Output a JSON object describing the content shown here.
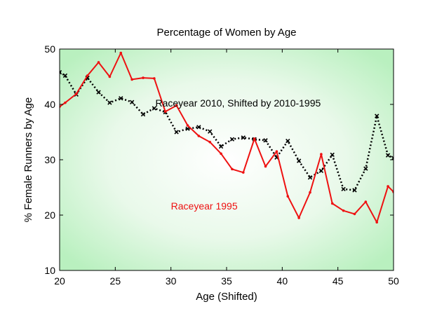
{
  "chart_data": {
    "type": "line",
    "title": "Percentage of Women by Age",
    "xlabel": "Age (Shifted)",
    "ylabel": "% Female Runners by Age",
    "xlim": [
      20,
      50
    ],
    "ylim": [
      10,
      50
    ],
    "xticks": [
      20,
      25,
      30,
      35,
      40,
      45,
      50
    ],
    "yticks": [
      10,
      20,
      30,
      40,
      50
    ],
    "xtick_labels": [
      "20",
      "25",
      "30",
      "35",
      "40",
      "45",
      "50"
    ],
    "ytick_labels": [
      "10",
      "20",
      "30",
      "40",
      "50"
    ],
    "grid": false,
    "background": "radial gradient white center to light green edges",
    "series": [
      {
        "name": "Raceyear 2010, Shifted by 2010-1995",
        "color": "#000000",
        "linestyle": "dotted",
        "marker": "x",
        "x": [
          20.0,
          20.5,
          21.5,
          22.5,
          23.5,
          24.5,
          25.5,
          26.5,
          27.5,
          28.5,
          29.5,
          30.5,
          31.5,
          32.5,
          33.5,
          34.5,
          35.5,
          36.5,
          37.5,
          38.5,
          39.5,
          40.5,
          41.5,
          42.5,
          43.5,
          44.5,
          45.5,
          46.5,
          47.5,
          48.5,
          49.5,
          50.0
        ],
        "y": [
          45.8,
          45.2,
          41.8,
          44.8,
          42.2,
          40.3,
          41.1,
          40.4,
          38.2,
          39.3,
          38.6,
          35.0,
          35.6,
          35.9,
          35.1,
          32.4,
          33.7,
          34.0,
          33.7,
          33.5,
          30.4,
          33.4,
          29.8,
          26.8,
          28.0,
          30.9,
          24.7,
          24.5,
          28.4,
          37.9,
          30.8,
          30.3
        ]
      },
      {
        "name": "Raceyear 1995",
        "color": "#ee1111",
        "linestyle": "solid",
        "marker": ".",
        "x": [
          20.0,
          20.5,
          21.5,
          22.5,
          23.5,
          24.5,
          25.5,
          26.5,
          27.5,
          28.5,
          29.5,
          30.5,
          31.5,
          32.5,
          33.5,
          34.5,
          35.5,
          36.5,
          37.5,
          38.5,
          39.5,
          40.5,
          41.5,
          42.5,
          43.5,
          44.5,
          45.5,
          46.5,
          47.5,
          48.5,
          49.5,
          50.0
        ],
        "y": [
          39.6,
          40.3,
          41.9,
          45.2,
          47.6,
          45.0,
          49.3,
          44.5,
          44.8,
          44.7,
          38.7,
          39.8,
          36.2,
          34.3,
          33.2,
          31.1,
          28.3,
          27.7,
          33.8,
          28.8,
          31.5,
          23.4,
          19.5,
          24.1,
          31.0,
          22.1,
          20.8,
          20.2,
          22.4,
          18.7,
          25.2,
          24.2
        ]
      }
    ],
    "annotations": [
      {
        "text": "Raceyear 2010, Shifted by 2010-1995",
        "color": "#000000",
        "x": 28.6,
        "y": 39.6
      },
      {
        "text": "Raceyear 1995",
        "color": "#ee1111",
        "x": 30.0,
        "y": 21.0
      }
    ]
  }
}
